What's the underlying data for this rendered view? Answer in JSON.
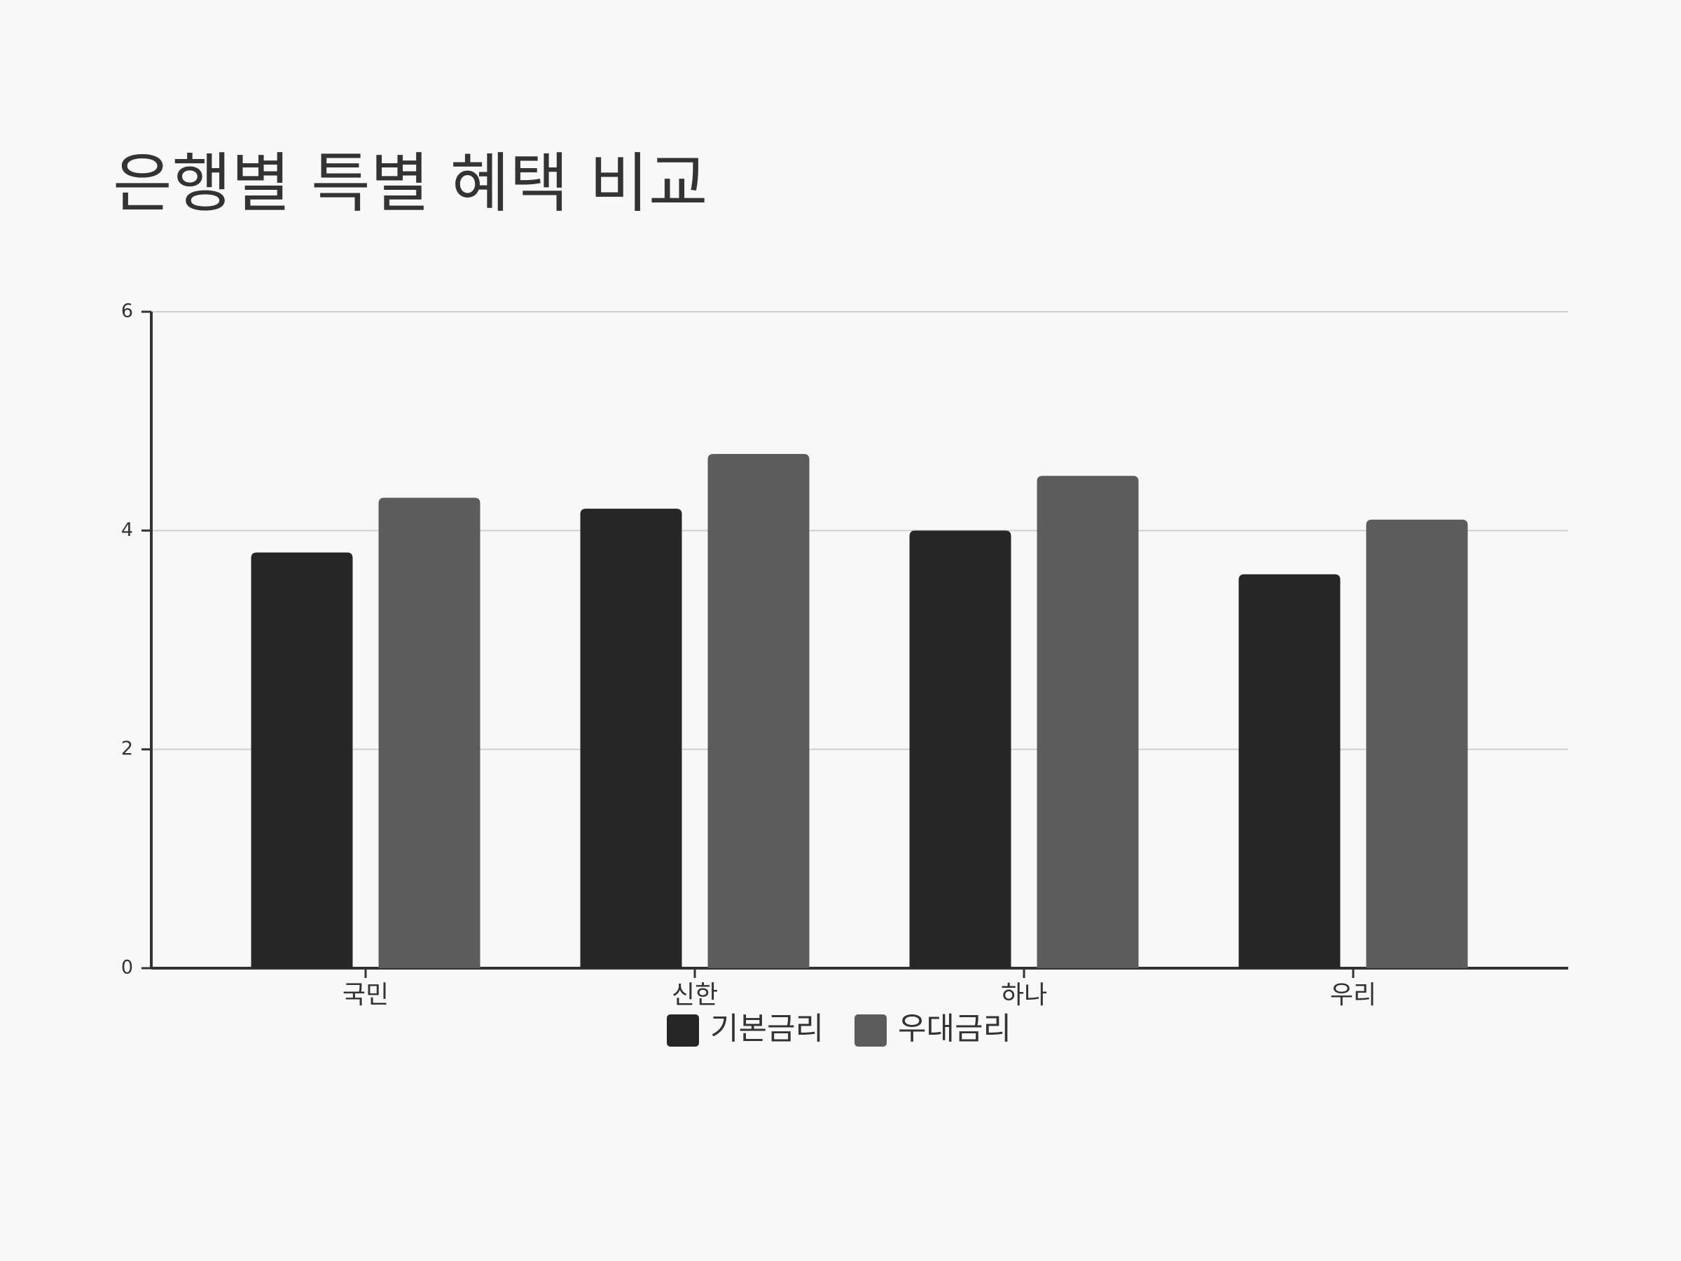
{
  "chart_data": {
    "type": "bar",
    "title": "은행별 특별 혜택 비교",
    "categories": [
      "국민",
      "신한",
      "하나",
      "우리"
    ],
    "series": [
      {
        "name": "기본금리",
        "color": "#262626",
        "values": [
          3.8,
          4.2,
          4.0,
          3.6
        ]
      },
      {
        "name": "우대금리",
        "color": "#5c5c5c",
        "values": [
          4.3,
          4.7,
          4.5,
          4.1
        ]
      }
    ],
    "ylim": [
      0,
      6
    ],
    "yticks": [
      0,
      2,
      4,
      6
    ],
    "grid": true,
    "legend": "bottom"
  }
}
